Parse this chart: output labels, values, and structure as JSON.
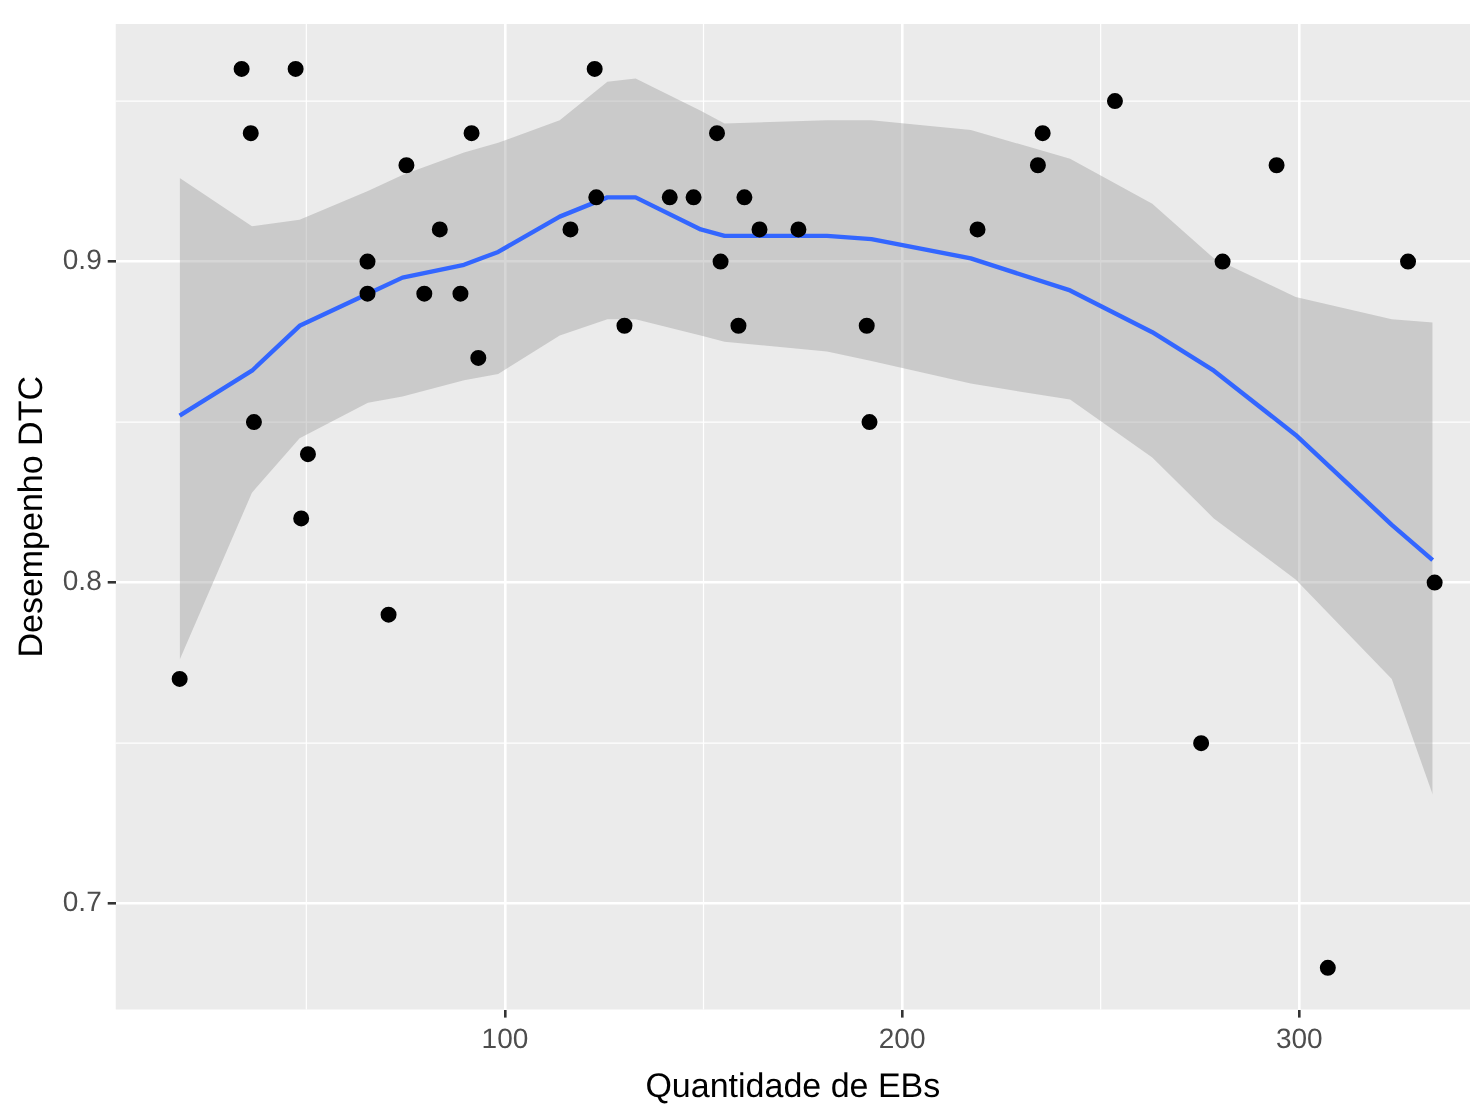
{
  "chart_data": {
    "type": "scatter",
    "xlabel": "Quantidade de EBs",
    "ylabel": "Desempenho DTC",
    "xlim": [
      2,
      343
    ],
    "ylim": [
      0.667,
      0.974
    ],
    "xticks": [
      100,
      200,
      300
    ],
    "yticks": [
      0.7,
      0.8,
      0.9
    ],
    "grid": true,
    "legend": false,
    "series": [
      {
        "marker": "circle",
        "color": "#000000",
        "x": [
          18.1,
          33.7,
          47.3,
          36,
          91.6,
          75.2,
          123,
          83.6,
          116.5,
          65.4,
          65.4,
          79.7,
          88.8,
          93.3,
          36.8,
          50.4,
          48.7,
          70.7,
          122.6,
          153.4,
          141.5,
          147.5,
          160.3,
          164.1,
          173.9,
          219,
          154.3,
          130.1,
          158.8,
          191.1,
          191.8,
          234.2,
          235.4,
          253.6,
          294.3,
          280.7,
          327.4,
          334.1,
          275.3,
          307.2
        ],
        "values": [
          0.77,
          0.96,
          0.96,
          0.94,
          0.94,
          0.93,
          0.92,
          0.91,
          0.91,
          0.9,
          0.89,
          0.89,
          0.89,
          0.87,
          0.85,
          0.84,
          0.82,
          0.79,
          0.96,
          0.94,
          0.92,
          0.92,
          0.92,
          0.91,
          0.91,
          0.91,
          0.9,
          0.88,
          0.88,
          0.88,
          0.85,
          0.93,
          0.94,
          0.95,
          0.93,
          0.9,
          0.9,
          0.8,
          0.75,
          0.68
        ]
      },
      {
        "type": "line",
        "marker": "none",
        "color": "#3366ff",
        "x": [
          18.1,
          36.3,
          48.3,
          65.5,
          74.2,
          89.7,
          98.3,
          113.8,
          125.8,
          132.9,
          149.3,
          155.3,
          181.1,
          192.3,
          217.3,
          242.3,
          263,
          278.5,
          299.1,
          323.3,
          333.6
        ],
        "values": [
          0.852,
          0.866,
          0.88,
          0.89,
          0.895,
          0.899,
          0.903,
          0.914,
          0.92,
          0.92,
          0.91,
          0.908,
          0.908,
          0.907,
          0.901,
          0.891,
          0.878,
          0.866,
          0.846,
          0.818,
          0.807
        ],
        "lower": [
          0.776,
          0.828,
          0.845,
          0.856,
          0.858,
          0.863,
          0.865,
          0.877,
          0.882,
          0.882,
          0.877,
          0.875,
          0.872,
          0.869,
          0.862,
          0.857,
          0.839,
          0.82,
          0.801,
          0.77,
          0.734
        ],
        "upper": [
          0.926,
          0.911,
          0.913,
          0.922,
          0.927,
          0.934,
          0.937,
          0.944,
          0.956,
          0.957,
          0.947,
          0.943,
          0.944,
          0.944,
          0.941,
          0.932,
          0.918,
          0.901,
          0.889,
          0.882,
          0.881
        ]
      }
    ]
  }
}
